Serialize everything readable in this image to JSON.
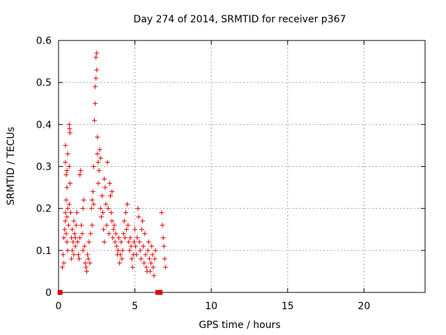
{
  "chart_data": {
    "type": "scatter",
    "title": "Day 274 of 2014, SRMTID for receiver p367",
    "xlabel": "GPS time / hours",
    "ylabel": "SRMTID / TECUs",
    "xlim": [
      0,
      24
    ],
    "ylim": [
      0,
      0.6
    ],
    "x_ticks": [
      0,
      5,
      10,
      15,
      20
    ],
    "y_ticks": [
      0,
      0.1,
      0.2,
      0.3,
      0.4,
      0.5,
      0.6
    ],
    "x_tick_labels": [
      "0",
      "5",
      "10",
      "15",
      "20"
    ],
    "y_tick_labels": [
      "0",
      "0.1",
      "0.2",
      "0.3",
      "0.4",
      "0.5",
      "0.6"
    ],
    "grid": true,
    "colors": {
      "series": "#dd0000",
      "grid": "#a0a0a0",
      "axis": "#000000"
    },
    "series": [
      {
        "name": "SRMTID",
        "marker": "plus",
        "points": [
          [
            0.25,
            0.06
          ],
          [
            0.3,
            0.09
          ],
          [
            0.35,
            0.13
          ],
          [
            0.4,
            0.15
          ],
          [
            0.45,
            0.17
          ],
          [
            0.5,
            0.14
          ],
          [
            0.55,
            0.12
          ],
          [
            0.6,
            0.1
          ],
          [
            0.35,
            0.07
          ],
          [
            0.45,
            0.19
          ],
          [
            0.5,
            0.22
          ],
          [
            0.5,
            0.28
          ],
          [
            0.45,
            0.31
          ],
          [
            0.45,
            0.35
          ],
          [
            0.55,
            0.25
          ],
          [
            0.6,
            0.2
          ],
          [
            0.55,
            0.29
          ],
          [
            0.6,
            0.33
          ],
          [
            0.55,
            0.18
          ],
          [
            0.65,
            0.16
          ],
          [
            0.7,
            0.4
          ],
          [
            0.75,
            0.38
          ],
          [
            0.72,
            0.39
          ],
          [
            0.7,
            0.3
          ],
          [
            0.75,
            0.26
          ],
          [
            0.7,
            0.21
          ],
          [
            0.8,
            0.19
          ],
          [
            0.85,
            0.13
          ],
          [
            0.9,
            0.1
          ],
          [
            0.85,
            0.08
          ],
          [
            0.9,
            0.15
          ],
          [
            0.95,
            0.12
          ],
          [
            1.0,
            0.17
          ],
          [
            1.05,
            0.14
          ],
          [
            1.1,
            0.11
          ],
          [
            1.0,
            0.09
          ],
          [
            1.1,
            0.13
          ],
          [
            1.15,
            0.16
          ],
          [
            1.2,
            0.19
          ],
          [
            1.25,
            0.12
          ],
          [
            1.3,
            0.09
          ],
          [
            1.35,
            0.08
          ],
          [
            1.4,
            0.13
          ],
          [
            1.4,
            0.28
          ],
          [
            1.45,
            0.29
          ],
          [
            1.5,
            0.16
          ],
          [
            1.55,
            0.14
          ],
          [
            1.6,
            0.1
          ],
          [
            1.6,
            0.2
          ],
          [
            1.65,
            0.22
          ],
          [
            1.7,
            0.11
          ],
          [
            1.75,
            0.07
          ],
          [
            1.8,
            0.06
          ],
          [
            1.85,
            0.05
          ],
          [
            1.9,
            0.09
          ],
          [
            1.95,
            0.08
          ],
          [
            2.0,
            0.12
          ],
          [
            2.05,
            0.07
          ],
          [
            2.1,
            0.14
          ],
          [
            2.15,
            0.2
          ],
          [
            2.2,
            0.16
          ],
          [
            2.2,
            0.22
          ],
          [
            2.25,
            0.24
          ],
          [
            2.3,
            0.21
          ],
          [
            2.3,
            0.3
          ],
          [
            2.35,
            0.41
          ],
          [
            2.4,
            0.45
          ],
          [
            2.4,
            0.49
          ],
          [
            2.45,
            0.51
          ],
          [
            2.5,
            0.53
          ],
          [
            2.5,
            0.57
          ],
          [
            2.45,
            0.56
          ],
          [
            2.55,
            0.37
          ],
          [
            2.55,
            0.33
          ],
          [
            2.6,
            0.31
          ],
          [
            2.6,
            0.26
          ],
          [
            2.65,
            0.29
          ],
          [
            2.7,
            0.34
          ],
          [
            2.75,
            0.32
          ],
          [
            2.75,
            0.2
          ],
          [
            2.8,
            0.18
          ],
          [
            2.85,
            0.23
          ],
          [
            2.9,
            0.19
          ],
          [
            2.95,
            0.15
          ],
          [
            3.0,
            0.12
          ],
          [
            3.0,
            0.27
          ],
          [
            3.05,
            0.25
          ],
          [
            3.1,
            0.21
          ],
          [
            3.15,
            0.16
          ],
          [
            3.2,
            0.31
          ],
          [
            3.25,
            0.2
          ],
          [
            3.3,
            0.14
          ],
          [
            3.35,
            0.26
          ],
          [
            3.4,
            0.23
          ],
          [
            3.45,
            0.19
          ],
          [
            3.5,
            0.17
          ],
          [
            3.5,
            0.24
          ],
          [
            3.55,
            0.13
          ],
          [
            3.6,
            0.15
          ],
          [
            3.65,
            0.16
          ],
          [
            3.7,
            0.12
          ],
          [
            3.75,
            0.14
          ],
          [
            3.8,
            0.11
          ],
          [
            3.85,
            0.09
          ],
          [
            3.9,
            0.1
          ],
          [
            3.95,
            0.13
          ],
          [
            4.0,
            0.07
          ],
          [
            4.05,
            0.09
          ],
          [
            4.1,
            0.12
          ],
          [
            4.15,
            0.08
          ],
          [
            4.2,
            0.1
          ],
          [
            4.25,
            0.14
          ],
          [
            4.3,
            0.17
          ],
          [
            4.35,
            0.13
          ],
          [
            4.4,
            0.19
          ],
          [
            4.45,
            0.15
          ],
          [
            4.5,
            0.21
          ],
          [
            4.55,
            0.16
          ],
          [
            4.6,
            0.12
          ],
          [
            4.65,
            0.1
          ],
          [
            4.7,
            0.13
          ],
          [
            4.75,
            0.11
          ],
          [
            4.8,
            0.08
          ],
          [
            4.85,
            0.06
          ],
          [
            4.9,
            0.09
          ],
          [
            4.95,
            0.12
          ],
          [
            5.0,
            0.15
          ],
          [
            5.05,
            0.11
          ],
          [
            5.1,
            0.09
          ],
          [
            5.15,
            0.13
          ],
          [
            5.2,
            0.2
          ],
          [
            5.25,
            0.18
          ],
          [
            5.3,
            0.12
          ],
          [
            5.35,
            0.1
          ],
          [
            5.4,
            0.08
          ],
          [
            5.45,
            0.15
          ],
          [
            5.5,
            0.17
          ],
          [
            5.55,
            0.11
          ],
          [
            5.6,
            0.07
          ],
          [
            5.65,
            0.14
          ],
          [
            5.7,
            0.09
          ],
          [
            5.75,
            0.06
          ],
          [
            5.8,
            0.05
          ],
          [
            5.85,
            0.1
          ],
          [
            5.9,
            0.12
          ],
          [
            5.95,
            0.08
          ],
          [
            6.0,
            0.05
          ],
          [
            6.05,
            0.07
          ],
          [
            6.1,
            0.11
          ],
          [
            6.15,
            0.09
          ],
          [
            6.2,
            0.06
          ],
          [
            6.25,
            0.04
          ],
          [
            6.3,
            0.08
          ],
          [
            6.35,
            0.1
          ],
          [
            6.75,
            0.19
          ],
          [
            6.8,
            0.16
          ],
          [
            6.85,
            0.13
          ],
          [
            6.9,
            0.11
          ],
          [
            6.95,
            0.08
          ],
          [
            7.0,
            0.06
          ]
        ]
      },
      {
        "name": "zero-markers",
        "marker": "square",
        "points": [
          [
            0.1,
            0.0
          ],
          [
            6.5,
            0.0
          ],
          [
            6.65,
            0.0
          ]
        ]
      }
    ]
  }
}
